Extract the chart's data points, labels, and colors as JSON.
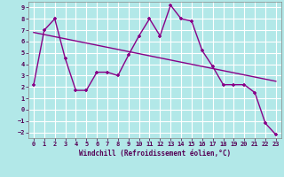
{
  "xlabel": "Windchill (Refroidissement éolien,°C)",
  "background_color": "#b2e8e8",
  "grid_color": "#aadddd",
  "line_color": "#880088",
  "xlim": [
    -0.5,
    23.5
  ],
  "ylim": [
    -2.5,
    9.5
  ],
  "xticks": [
    0,
    1,
    2,
    3,
    4,
    5,
    6,
    7,
    8,
    9,
    10,
    11,
    12,
    13,
    14,
    15,
    16,
    17,
    18,
    19,
    20,
    21,
    22,
    23
  ],
  "yticks": [
    -2,
    -1,
    0,
    1,
    2,
    3,
    4,
    5,
    6,
    7,
    8,
    9
  ],
  "line1_x": [
    0,
    1,
    2,
    3,
    4,
    5,
    6,
    7,
    8,
    9,
    10,
    11,
    12,
    13,
    14,
    15,
    16,
    17,
    18,
    19,
    20,
    21,
    22,
    23
  ],
  "line1_y": [
    2.2,
    7.0,
    8.0,
    4.5,
    1.7,
    1.7,
    3.3,
    3.3,
    3.0,
    4.8,
    6.5,
    8.0,
    6.5,
    9.2,
    8.0,
    7.8,
    5.2,
    3.8,
    2.2,
    2.2,
    2.2,
    1.5,
    -1.2,
    -2.2
  ],
  "line2_x": [
    0,
    23
  ],
  "line2_y": [
    6.8,
    2.5
  ],
  "marker": "+"
}
